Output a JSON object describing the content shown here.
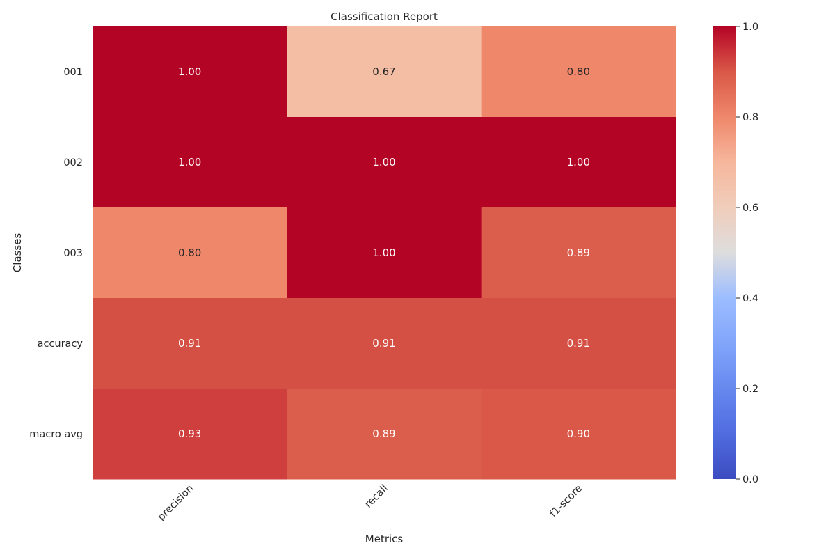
{
  "chart_data": {
    "type": "heatmap",
    "title": "Classification Report",
    "xlabel": "Metrics",
    "ylabel": "Classes",
    "columns": [
      "precision",
      "recall",
      "f1-score"
    ],
    "rows": [
      "001",
      "002",
      "003",
      "accuracy",
      "macro avg"
    ],
    "values": [
      [
        1.0,
        0.67,
        0.8
      ],
      [
        1.0,
        1.0,
        1.0
      ],
      [
        0.8,
        1.0,
        0.89
      ],
      [
        0.91,
        0.91,
        0.91
      ],
      [
        0.93,
        0.89,
        0.9
      ]
    ],
    "value_labels": [
      [
        "1.00",
        "0.67",
        "0.80"
      ],
      [
        "1.00",
        "1.00",
        "1.00"
      ],
      [
        "0.80",
        "1.00",
        "0.89"
      ],
      [
        "0.91",
        "0.91",
        "0.91"
      ],
      [
        "0.93",
        "0.89",
        "0.90"
      ]
    ],
    "colormap": "coolwarm",
    "vmin": 0.0,
    "vmax": 1.0,
    "colorbar_ticks": [
      "0.0",
      "0.2",
      "0.4",
      "0.6",
      "0.8",
      "1.0"
    ],
    "grid": false,
    "colors": {
      "low": "#3b4cc0",
      "mid": "#dddddd",
      "high": "#b40426"
    }
  }
}
